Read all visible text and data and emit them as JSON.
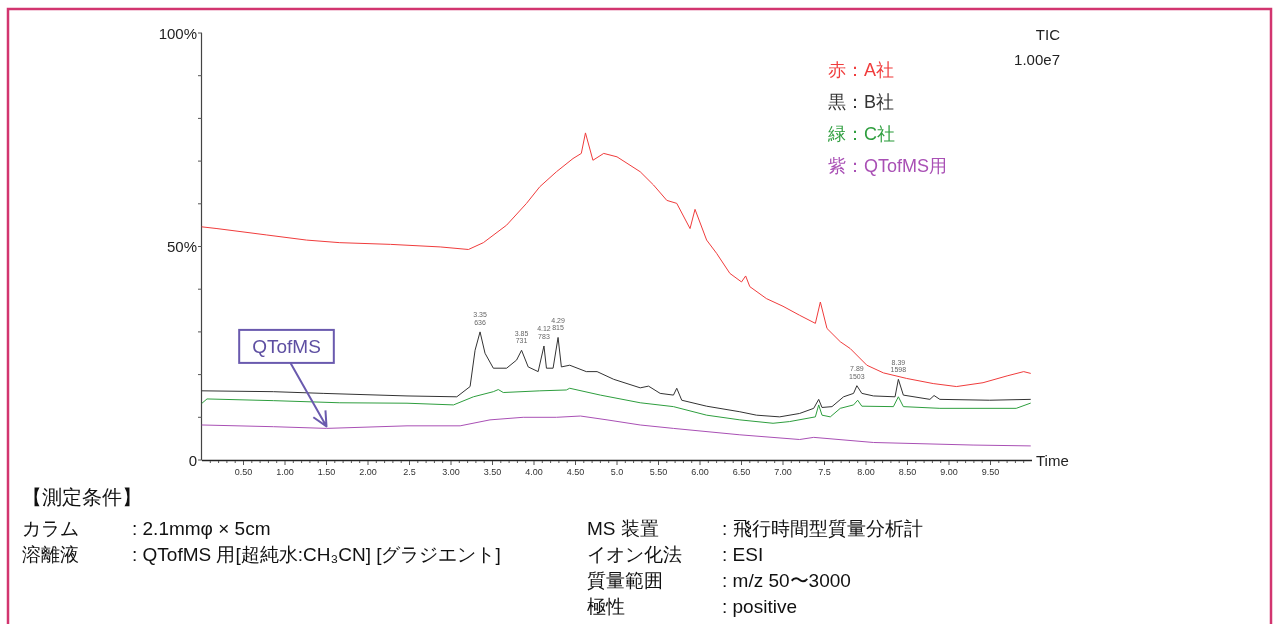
{
  "chart_data": {
    "type": "line",
    "xlabel": "Time",
    "xlim": [
      0,
      10
    ],
    "xticks": [
      {
        "value": 0.1,
        "label": null
      },
      {
        "value": 0.2,
        "label": null
      },
      {
        "value": 0.3,
        "label": null
      },
      {
        "value": 0.4,
        "label": null
      },
      {
        "value": 0.5,
        "label": "0.50"
      },
      {
        "value": 0.6,
        "label": null
      },
      {
        "value": 0.7,
        "label": null
      },
      {
        "value": 0.8,
        "label": null
      },
      {
        "value": 0.9,
        "label": null
      },
      {
        "value": 1,
        "label": "1.00"
      },
      {
        "value": 1.1,
        "label": null
      },
      {
        "value": 1.2,
        "label": null
      },
      {
        "value": 1.3,
        "label": null
      },
      {
        "value": 1.4,
        "label": null
      },
      {
        "value": 1.5,
        "label": "1.50"
      },
      {
        "value": 1.6,
        "label": null
      },
      {
        "value": 1.7,
        "label": null
      },
      {
        "value": 1.8,
        "label": null
      },
      {
        "value": 1.9,
        "label": null
      },
      {
        "value": 2,
        "label": "2.00"
      },
      {
        "value": 2.1,
        "label": null
      },
      {
        "value": 2.2,
        "label": null
      },
      {
        "value": 2.3,
        "label": null
      },
      {
        "value": 2.4,
        "label": null
      },
      {
        "value": 2.5,
        "label": "2.5"
      },
      {
        "value": 2.6,
        "label": null
      },
      {
        "value": 2.7,
        "label": null
      },
      {
        "value": 2.8,
        "label": null
      },
      {
        "value": 2.9,
        "label": null
      },
      {
        "value": 3,
        "label": "3.00"
      },
      {
        "value": 3.1,
        "label": null
      },
      {
        "value": 3.2,
        "label": null
      },
      {
        "value": 3.3,
        "label": null
      },
      {
        "value": 3.4,
        "label": null
      },
      {
        "value": 3.5,
        "label": "3.50"
      },
      {
        "value": 3.6,
        "label": null
      },
      {
        "value": 3.7,
        "label": null
      },
      {
        "value": 3.8,
        "label": null
      },
      {
        "value": 3.9,
        "label": null
      },
      {
        "value": 4,
        "label": "4.00"
      },
      {
        "value": 4.1,
        "label": null
      },
      {
        "value": 4.2,
        "label": null
      },
      {
        "value": 4.3,
        "label": null
      },
      {
        "value": 4.4,
        "label": null
      },
      {
        "value": 4.5,
        "label": "4.50"
      },
      {
        "value": 4.6,
        "label": null
      },
      {
        "value": 4.7,
        "label": null
      },
      {
        "value": 4.8,
        "label": null
      },
      {
        "value": 4.9,
        "label": null
      },
      {
        "value": 5,
        "label": "5.0"
      },
      {
        "value": 5.1,
        "label": null
      },
      {
        "value": 5.2,
        "label": null
      },
      {
        "value": 5.3,
        "label": null
      },
      {
        "value": 5.4,
        "label": null
      },
      {
        "value": 5.5,
        "label": "5.50"
      },
      {
        "value": 5.6,
        "label": null
      },
      {
        "value": 5.7,
        "label": null
      },
      {
        "value": 5.8,
        "label": null
      },
      {
        "value": 5.9,
        "label": null
      },
      {
        "value": 6,
        "label": "6.00"
      },
      {
        "value": 6.1,
        "label": null
      },
      {
        "value": 6.2,
        "label": null
      },
      {
        "value": 6.3,
        "label": null
      },
      {
        "value": 6.4,
        "label": null
      },
      {
        "value": 6.5,
        "label": "6.50"
      },
      {
        "value": 6.6,
        "label": null
      },
      {
        "value": 6.7,
        "label": null
      },
      {
        "value": 6.8,
        "label": null
      },
      {
        "value": 6.9,
        "label": null
      },
      {
        "value": 7,
        "label": "7.00"
      },
      {
        "value": 7.1,
        "label": null
      },
      {
        "value": 7.2,
        "label": null
      },
      {
        "value": 7.3,
        "label": null
      },
      {
        "value": 7.4,
        "label": null
      },
      {
        "value": 7.5,
        "label": "7.5"
      },
      {
        "value": 7.6,
        "label": null
      },
      {
        "value": 7.7,
        "label": null
      },
      {
        "value": 7.8,
        "label": null
      },
      {
        "value": 7.9,
        "label": null
      },
      {
        "value": 8,
        "label": "8.00"
      },
      {
        "value": 8.1,
        "label": null
      },
      {
        "value": 8.2,
        "label": null
      },
      {
        "value": 8.3,
        "label": null
      },
      {
        "value": 8.4,
        "label": null
      },
      {
        "value": 8.5,
        "label": "8.50"
      },
      {
        "value": 8.6,
        "label": null
      },
      {
        "value": 8.7,
        "label": null
      },
      {
        "value": 8.8,
        "label": null
      },
      {
        "value": 8.9,
        "label": null
      },
      {
        "value": 9,
        "label": "9.00"
      },
      {
        "value": 9.1,
        "label": null
      },
      {
        "value": 9.2,
        "label": null
      },
      {
        "value": 9.3,
        "label": null
      },
      {
        "value": 9.4,
        "label": null
      },
      {
        "value": 9.5,
        "label": "9.50"
      },
      {
        "value": 9.6,
        "label": null
      },
      {
        "value": 9.7,
        "label": null
      },
      {
        "value": 9.8,
        "label": null
      },
      {
        "value": 9.9,
        "label": null
      }
    ],
    "ylim": [
      0,
      100
    ],
    "yticks": [
      0,
      {
        "value": 10,
        "label": null
      },
      {
        "value": 20,
        "label": null
      },
      {
        "value": 30,
        "label": null
      },
      {
        "value": 40,
        "label": null
      },
      {
        "value": 50,
        "label": "50%"
      },
      {
        "value": 60,
        "label": null
      },
      {
        "value": 70,
        "label": null
      },
      {
        "value": 80,
        "label": null
      },
      {
        "value": 90,
        "label": null
      },
      {
        "value": 100,
        "label": "100%"
      }
    ],
    "legend": "top right",
    "grid": false,
    "marker": "none",
    "line_style": "solid",
    "series": [
      {
        "name": "赤：A社",
        "color": "#f03c3c",
        "x": [
          0,
          0.18,
          0.78,
          1.26,
          1.66,
          2.27,
          2.87,
          3.21,
          3.39,
          3.67,
          3.91,
          4.07,
          4.27,
          4.47,
          4.57,
          4.62,
          4.71,
          4.84,
          5.0,
          5.28,
          5.44,
          5.6,
          5.72,
          5.88,
          5.94,
          6.08,
          6.2,
          6.36,
          6.5,
          6.55,
          6.6,
          6.8,
          7.0,
          7.2,
          7.39,
          7.45,
          7.53,
          7.69,
          7.81,
          8.01,
          8.21,
          8.49,
          8.81,
          9.09,
          9.41,
          9.7,
          9.9,
          9.98
        ],
        "values": [
          54.6,
          54.2,
          52.7,
          51.5,
          50.9,
          50.5,
          49.9,
          49.3,
          50.9,
          55.0,
          60.1,
          64.0,
          67.5,
          70.6,
          71.8,
          76.6,
          70.2,
          71.8,
          71.0,
          67.5,
          64.4,
          60.8,
          60.1,
          54.2,
          58.7,
          51.5,
          48.4,
          43.7,
          41.7,
          43.1,
          40.6,
          37.8,
          36.0,
          33.9,
          32.0,
          37.0,
          30.8,
          27.7,
          26.1,
          22.2,
          20.4,
          19.1,
          17.9,
          17.2,
          18.1,
          19.7,
          20.7,
          20.3
        ]
      },
      {
        "name": "黒：B社",
        "color": "#333333",
        "x": [
          0,
          0.86,
          1.46,
          2.47,
          3.07,
          3.23,
          3.29,
          3.35,
          3.41,
          3.51,
          3.67,
          3.79,
          3.85,
          3.93,
          4.05,
          4.12,
          4.15,
          4.23,
          4.29,
          4.33,
          4.43,
          4.63,
          4.76,
          4.96,
          5.28,
          5.38,
          5.52,
          5.68,
          5.72,
          5.78,
          6.08,
          6.48,
          6.68,
          6.96,
          7.2,
          7.37,
          7.43,
          7.47,
          7.59,
          7.73,
          7.85,
          7.89,
          7.95,
          8.09,
          8.35,
          8.39,
          8.45,
          8.77,
          8.82,
          8.89,
          9.49,
          9.98
        ],
        "values": [
          16.2,
          16.0,
          15.6,
          15.0,
          14.8,
          17.2,
          25.7,
          30.0,
          25.0,
          21.5,
          21.5,
          23.4,
          25.7,
          21.8,
          20.7,
          26.7,
          21.5,
          21.5,
          28.7,
          21.8,
          22.2,
          20.7,
          20.7,
          18.9,
          16.9,
          17.3,
          15.6,
          15.2,
          16.8,
          14.0,
          12.6,
          11.3,
          10.5,
          10.1,
          10.9,
          12.1,
          14.2,
          12.3,
          12.5,
          14.8,
          15.6,
          17.4,
          15.6,
          15.0,
          14.8,
          18.9,
          15.2,
          14.2,
          15.1,
          14.2,
          14.0,
          14.2
        ]
      },
      {
        "name": "緑：C社",
        "color": "#2e9e3e",
        "x": [
          0,
          0.06,
          0.86,
          1.66,
          2.47,
          3.03,
          3.27,
          3.51,
          3.57,
          3.63,
          4.07,
          4.39,
          4.43,
          4.8,
          5.28,
          5.68,
          6.08,
          6.48,
          6.88,
          7.08,
          7.39,
          7.43,
          7.47,
          7.57,
          7.69,
          7.85,
          7.9,
          7.95,
          8.33,
          8.39,
          8.45,
          8.89,
          9.81,
          9.98
        ],
        "values": [
          13.3,
          14.3,
          13.9,
          13.4,
          13.3,
          12.9,
          14.8,
          16.0,
          16.5,
          15.8,
          16.2,
          16.4,
          16.8,
          15.2,
          13.4,
          12.5,
          10.5,
          9.4,
          8.6,
          9.0,
          10.1,
          12.9,
          10.5,
          10.1,
          12.1,
          12.9,
          14.0,
          12.6,
          12.5,
          14.8,
          12.5,
          12.1,
          12.1,
          13.3
        ]
      },
      {
        "name": "紫：QTofMS用",
        "color": "#a950b5",
        "x": [
          0,
          0.86,
          1.5,
          2.47,
          3.11,
          3.47,
          3.87,
          4.27,
          4.56,
          4.88,
          5.28,
          5.68,
          6.48,
          7.2,
          7.37,
          8.09,
          9.29,
          9.98
        ],
        "values": [
          8.2,
          7.8,
          7.4,
          8.0,
          8.0,
          9.4,
          10.0,
          10.0,
          10.3,
          9.4,
          8.2,
          7.4,
          5.9,
          4.8,
          5.3,
          4.1,
          3.5,
          3.3
        ]
      }
    ],
    "annotations": [
      "TIC",
      "1.00e7",
      {
        "text": "QTofMS",
        "x": 1.5,
        "y": 7.4
      },
      {
        "text": "3.35\n636",
        "x": 3.35,
        "y": 30.0
      },
      {
        "text": "3.85\n731",
        "x": 3.85,
        "y": 25.7
      },
      {
        "text": "4.12\n783",
        "x": 4.12,
        "y": 26.7
      },
      {
        "text": "4.29\n815",
        "x": 4.29,
        "y": 28.7
      },
      {
        "text": "7.89\n1503",
        "x": 7.89,
        "y": 17.4
      },
      {
        "text": "8.39\n1598",
        "x": 8.39,
        "y": 18.9
      },
      "【測定条件】",
      "カラム\t: 2.1mmφ × 5cm",
      "溶離液\t: QTofMS 用[超純水:CH₃CN] [グラジエント]",
      "MS 装置\t: 飛行時間型質量分析計",
      "イオン化法\t: ESI",
      "質量範囲\t: m/z 50〜3000",
      "極性\t: positive"
    ]
  }
}
